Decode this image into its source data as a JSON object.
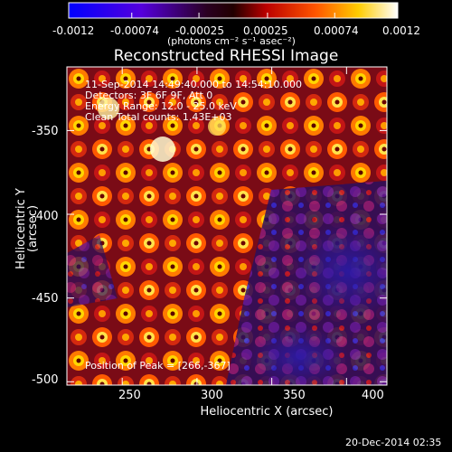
{
  "colorbar": {
    "ticks": [
      "-0.0012",
      "-0.00074",
      "-0.00025",
      "0.00025",
      "0.00074",
      "0.0012"
    ],
    "tick_values": [
      -0.0012,
      -0.00074,
      -0.00025,
      0.00025,
      0.00074,
      0.0012
    ],
    "range": [
      -0.0012,
      0.0012
    ],
    "units": "(photons cm⁻² s⁻¹ asec⁻²)"
  },
  "plot": {
    "title": "Reconstructed RHESSI Image",
    "xlabel": "Heliocentric X (arcsec)",
    "ylabel": "Heliocentric Y (arcsec)",
    "x_ticks": [
      "250",
      "300",
      "350",
      "400"
    ],
    "x_tick_values": [
      250,
      300,
      350,
      400
    ],
    "y_ticks": [
      "-350",
      "-400",
      "-450",
      "-500"
    ],
    "y_tick_values": [
      -350,
      -400,
      -450,
      -500
    ],
    "xlim": [
      213,
      427
    ],
    "ylim": [
      -502,
      -312
    ]
  },
  "overlay": {
    "line1": "11-Sep-2014 14:49:40.000 to 14:54:10.000",
    "line2": "Detectors: 3F 6F 9F, Att 0",
    "line3": "Energy Range: 12.0 - 25.0 keV",
    "line4": "Clean    Total counts: 1.43E+03",
    "peak": "Position of Peak = [266,-367]"
  },
  "footer": {
    "timestamp": "20-Dec-2014 02:35"
  },
  "colors": {
    "background": "#000000",
    "colormap": [
      "#0000ff",
      "#6600cc",
      "#330033",
      "#aa0000",
      "#ff6600",
      "#ffdd00",
      "#ffffff"
    ]
  }
}
